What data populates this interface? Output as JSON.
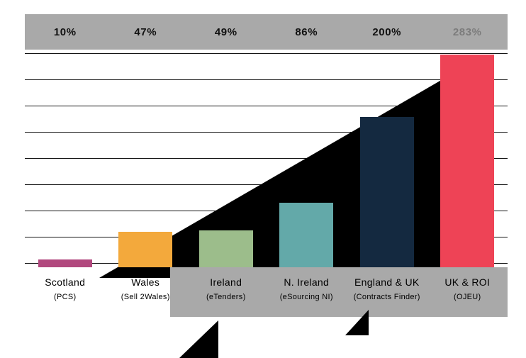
{
  "chart_data": {
    "type": "bar",
    "title": "",
    "categories": [
      "Scotland",
      "Wales",
      "Ireland",
      "N. Ireland",
      "England & UK",
      "UK & ROI"
    ],
    "category_sublabels": [
      "(PCS)",
      "(Sell 2Wales)",
      "(eTenders)",
      "(eSourcing NI)",
      "(Contracts Finder)",
      "(OJEU)"
    ],
    "value_labels": [
      "10%",
      "47%",
      "49%",
      "86%",
      "200%",
      "283%"
    ],
    "values": [
      10,
      47,
      49,
      86,
      200,
      283
    ],
    "unit": "%",
    "ymax_pct": 283,
    "gridline_count": 9,
    "grid_on": true,
    "legend": "none",
    "bar_colors": [
      "#b1487e",
      "#f3a93c",
      "#9cbd8b",
      "#63a9a9",
      "#142940",
      "#ee4356"
    ],
    "value_label_colors": [
      "#111111",
      "#111111",
      "#111111",
      "#111111",
      "#111111",
      "#7c7c7c"
    ],
    "band_color": "#a9a9a9",
    "gridline_color": "#141414"
  },
  "decor": {
    "trend_triangle_color": "#000000",
    "artifact_color": "#000000"
  }
}
